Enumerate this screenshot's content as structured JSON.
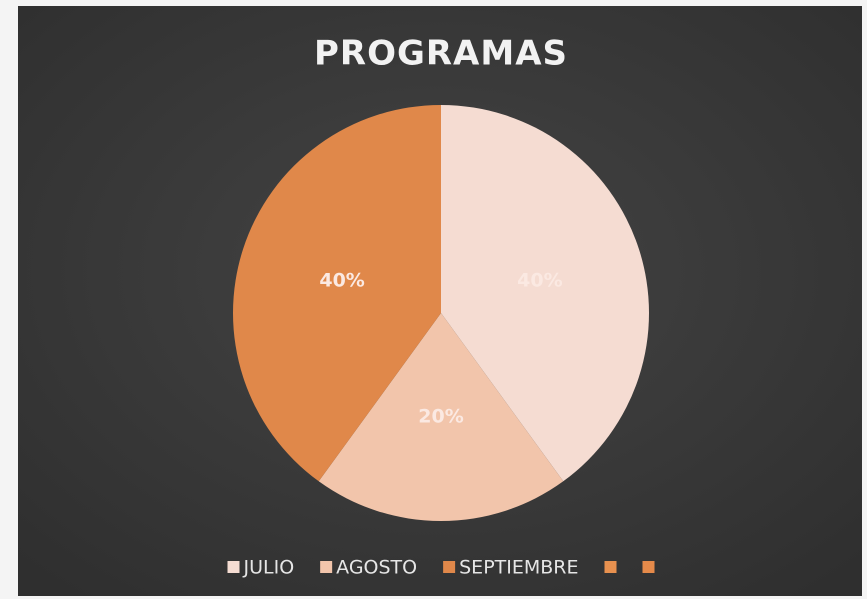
{
  "chart_data": {
    "type": "pie",
    "title": "PROGRAMAS",
    "categories": [
      "JULIO",
      "AGOSTO",
      "SEPTIEMBRE",
      null,
      null
    ],
    "values": [
      40,
      20,
      40,
      0,
      0
    ],
    "value_labels": [
      "40%",
      "20%",
      "40%",
      null,
      null
    ],
    "colors": [
      "#f5dcd2",
      "#f2c5ab",
      "#e0884a",
      "#e8914f",
      "#e58a4a"
    ],
    "legend": "bottom"
  }
}
